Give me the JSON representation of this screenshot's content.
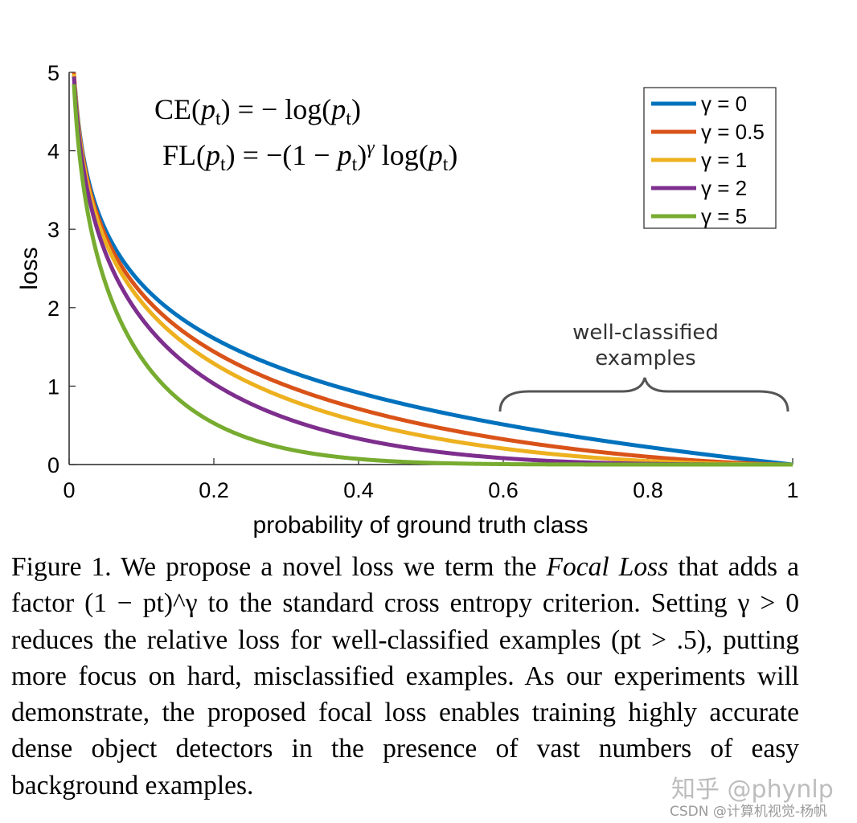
{
  "chart_data": {
    "type": "line",
    "xlabel": "probability of ground truth class",
    "ylabel": "loss",
    "xlim": [
      0,
      1
    ],
    "ylim": [
      0,
      5
    ],
    "xticks": [
      "0",
      "0.2",
      "0.4",
      "0.6",
      "0.8",
      "1"
    ],
    "yticks": [
      "0",
      "1",
      "2",
      "3",
      "4",
      "5"
    ],
    "grid": false,
    "legend_position": "top-right",
    "x": [
      0.01,
      0.02,
      0.05,
      0.1,
      0.2,
      0.3,
      0.4,
      0.5,
      0.6,
      0.7,
      0.8,
      0.9,
      1.0
    ],
    "series": [
      {
        "name": "γ = 0",
        "gamma": 0,
        "color": "#0072BD",
        "values": [
          4.61,
          3.91,
          3.0,
          2.3,
          1.61,
          1.2,
          0.92,
          0.69,
          0.51,
          0.36,
          0.22,
          0.11,
          0.0
        ]
      },
      {
        "name": "γ = 0.5",
        "gamma": 0.5,
        "color": "#D95319",
        "values": [
          4.58,
          3.87,
          2.92,
          2.18,
          1.44,
          1.01,
          0.71,
          0.49,
          0.32,
          0.19,
          0.1,
          0.03,
          0.0
        ]
      },
      {
        "name": "γ = 1",
        "gamma": 1,
        "color": "#EDB120",
        "values": [
          4.56,
          3.83,
          2.85,
          2.07,
          1.29,
          0.84,
          0.55,
          0.35,
          0.2,
          0.11,
          0.04,
          0.01,
          0.0
        ]
      },
      {
        "name": "γ = 2",
        "gamma": 2,
        "color": "#7E2F8E",
        "values": [
          4.52,
          3.76,
          2.71,
          1.87,
          1.03,
          0.59,
          0.33,
          0.17,
          0.08,
          0.03,
          0.01,
          0.0,
          0.0
        ]
      },
      {
        "name": "γ = 5",
        "gamma": 5,
        "color": "#77AC30",
        "values": [
          4.38,
          3.54,
          2.32,
          1.36,
          0.53,
          0.2,
          0.07,
          0.02,
          0.01,
          0.0,
          0.0,
          0.0,
          0.0
        ]
      }
    ],
    "annotations": {
      "ce_equation": "CE(pt) = − log(pt)",
      "fl_equation": "FL(pt) = −(1 − pt)^γ log(pt)",
      "brace_label_line1": "well-classified",
      "brace_label_line2": "examples"
    }
  },
  "caption": {
    "figure_label": "Figure 1.",
    "text_1": "We propose a novel loss we term the",
    "emph": "Focal Loss",
    "text_2": "that adds a factor (1 − pt)^γ to the standard cross entropy criterion. Setting γ > 0 reduces the relative loss for well-classified examples (pt > .5), putting more focus on hard, misclassified examples. As our experiments will demonstrate, the proposed focal loss enables training highly accurate dense object detectors in the presence of vast numbers of easy background examples."
  },
  "watermarks": {
    "zhihu": "知乎 @phynlp",
    "csdn": "CSDN @计算机视觉-杨帆"
  }
}
